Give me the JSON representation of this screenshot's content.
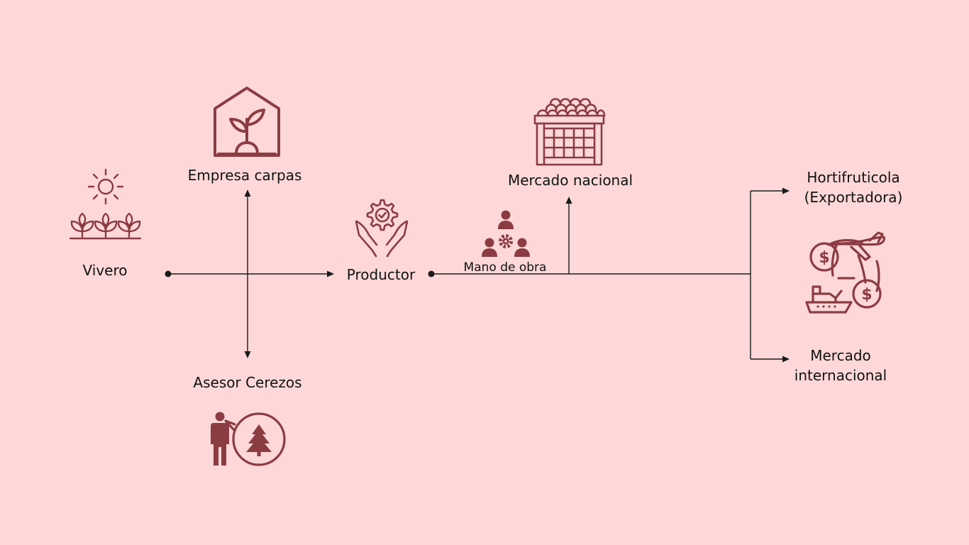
{
  "nodes": {
    "vivero": "Vivero",
    "empresa_carpas": "Empresa carpas",
    "asesor_cerezos": "Asesor Cerezos",
    "productor": "Productor",
    "mano_de_obra": "Mano de obra",
    "mercado_nacional": "Mercado nacional",
    "hortifruticola_line1": "Hortifruticola",
    "hortifruticola_line2": "(Exportadora)",
    "mercado_internacional_line1": "Mercado",
    "mercado_internacional_line2": "internacional"
  },
  "colors": {
    "background": "#fed8d8",
    "icon": "#8b3c42",
    "line": "#1a1a1a",
    "text": "#111111"
  }
}
